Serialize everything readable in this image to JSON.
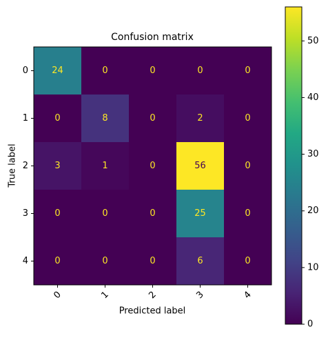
{
  "chart_data": {
    "type": "heatmap",
    "title": "Confusion matrix",
    "x_label": "Predicted label",
    "y_label": "True label",
    "x_categories": [
      "0",
      "1",
      "2",
      "3",
      "4"
    ],
    "y_categories": [
      "0",
      "1",
      "2",
      "3",
      "4"
    ],
    "values": [
      [
        24,
        0,
        0,
        0,
        0
      ],
      [
        0,
        8,
        0,
        2,
        0
      ],
      [
        3,
        1,
        0,
        56,
        0
      ],
      [
        0,
        0,
        0,
        25,
        0
      ],
      [
        0,
        0,
        0,
        6,
        0
      ]
    ],
    "colormap": "viridis",
    "clim": [
      0,
      56
    ],
    "colorbar_ticks": [
      0,
      10,
      20,
      30,
      40,
      50
    ],
    "text_color_low": "#fde725",
    "text_color_high": "#440154"
  }
}
